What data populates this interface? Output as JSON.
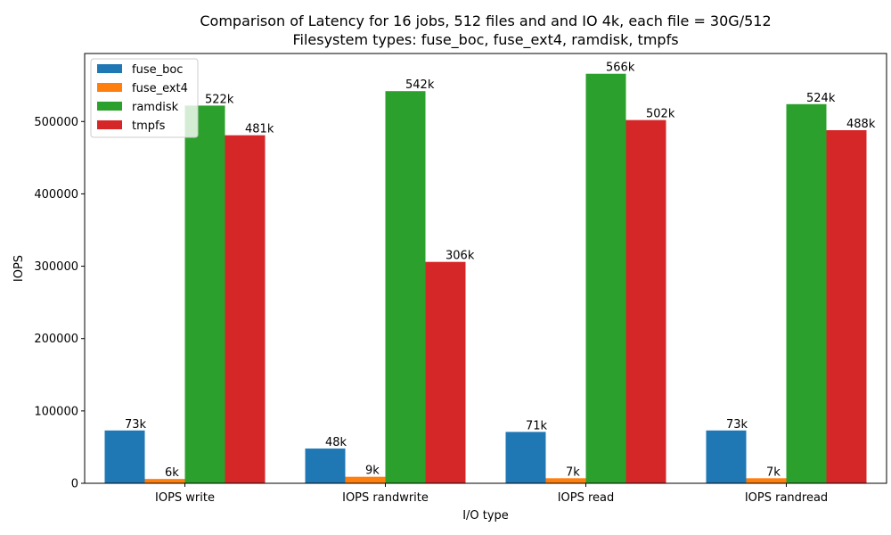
{
  "chart_data": {
    "type": "bar",
    "title_line1": "Comparison of Latency for 16 jobs, 512 files and  and IO 4k, each file = 30G/512",
    "title_line2": "Filesystem types: fuse_boc, fuse_ext4, ramdisk, tmpfs",
    "xlabel": "I/O type",
    "ylabel": "IOPS",
    "categories": [
      "IOPS write",
      "IOPS randwrite",
      "IOPS read",
      "IOPS randread"
    ],
    "ylim": [
      0,
      594000
    ],
    "yticks": [
      0,
      100000,
      200000,
      300000,
      400000,
      500000
    ],
    "ytick_labels": [
      "0",
      "100000",
      "200000",
      "300000",
      "400000",
      "500000"
    ],
    "grid": false,
    "legend_position": "upper-left",
    "series": [
      {
        "name": "fuse_boc",
        "color": "#1f77b4",
        "values": [
          73000,
          48000,
          71000,
          73000
        ],
        "labels": [
          "73k",
          "48k",
          "71k",
          "73k"
        ]
      },
      {
        "name": "fuse_ext4",
        "color": "#ff7f0e",
        "values": [
          6000,
          9000,
          7000,
          7000
        ],
        "labels": [
          "6k",
          "9k",
          "7k",
          "7k"
        ]
      },
      {
        "name": "ramdisk",
        "color": "#2ca02c",
        "values": [
          522000,
          542000,
          566000,
          524000
        ],
        "labels": [
          "522k",
          "542k",
          "566k",
          "524k"
        ]
      },
      {
        "name": "tmpfs",
        "color": "#d62728",
        "values": [
          481000,
          306000,
          502000,
          488000
        ],
        "labels": [
          "481k",
          "306k",
          "502k",
          "488k"
        ]
      }
    ]
  }
}
